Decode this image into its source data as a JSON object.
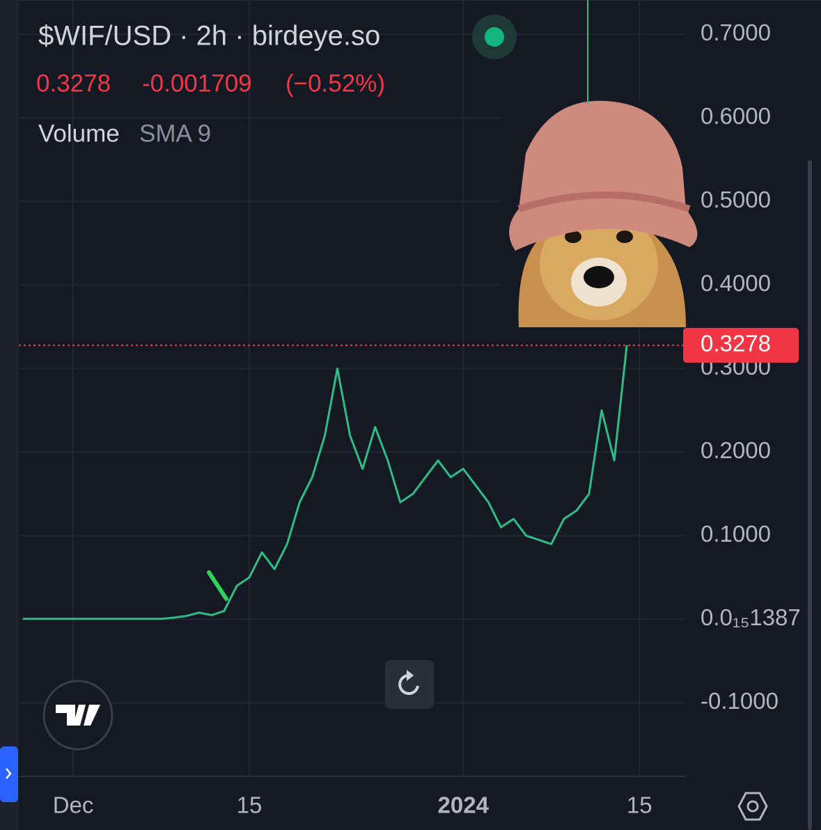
{
  "header": {
    "title": "$WIF/USD · 2h · birdeye.so",
    "change": "-0.001709",
    "change_percent": "(−0.52%)",
    "indicator": "Volume",
    "indicator_setting": "SMA 9"
  },
  "chart_data": {
    "type": "line",
    "categories": [
      null,
      null,
      null,
      null,
      "Dec",
      null,
      null,
      null,
      null,
      null,
      null,
      null,
      null,
      null,
      null,
      null,
      null,
      null,
      "15",
      null,
      null,
      null,
      null,
      null,
      null,
      null,
      null,
      null,
      null,
      null,
      null,
      null,
      null,
      null,
      null,
      "2024",
      null,
      null,
      null,
      null,
      null,
      null,
      null,
      null,
      null,
      null,
      null,
      null,
      null,
      "15",
      null,
      null,
      null,
      null
    ],
    "series": [
      {
        "color": "#2ebd85",
        "values": [
          0.0005,
          0.0005,
          0.0005,
          0.0005,
          0.0005,
          0.0005,
          0.0005,
          0.0005,
          0.0005,
          0.0005,
          0.0005,
          0.0005,
          0.002,
          0.004,
          0.008,
          0.005,
          0.01,
          0.04,
          0.05,
          0.08,
          0.06,
          0.09,
          0.14,
          0.17,
          0.22,
          0.3,
          0.22,
          0.18,
          0.23,
          0.19,
          0.14,
          0.15,
          0.17,
          0.19,
          0.17,
          0.18,
          0.16,
          0.14,
          0.11,
          0.12,
          0.1,
          0.095,
          0.09,
          0.12,
          0.13,
          0.15,
          0.25,
          0.19,
          0.3278,
          null,
          null,
          null,
          null,
          null
        ]
      }
    ],
    "last_price": 0.3278,
    "last_price_color": "#f23645",
    "ylim": [
      -0.188,
      0.741
    ],
    "yticks": [
      {
        "value": -0.1,
        "label": "-0.1000"
      },
      {
        "value": 1.387e-16,
        "label": "0.0₁₅1387"
      },
      {
        "value": 0.1,
        "label": "0.1000"
      },
      {
        "value": 0.2,
        "label": "0.2000"
      },
      {
        "value": 0.3,
        "label": "0.3000"
      },
      {
        "value": 0.4,
        "label": "0.4000"
      },
      {
        "value": 0.5,
        "label": "0.5000"
      },
      {
        "value": 0.6,
        "label": "0.6000"
      },
      {
        "value": 0.7,
        "label": "0.7000"
      }
    ],
    "grid": true
  }
}
